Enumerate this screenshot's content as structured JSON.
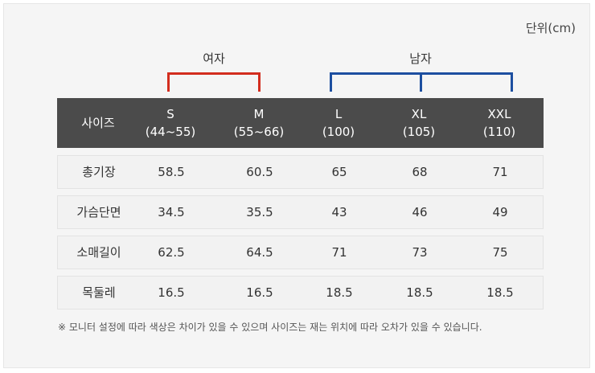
{
  "unit_label": "단위(cm)",
  "groups": {
    "women": "여자",
    "men": "남자"
  },
  "colors": {
    "women_bracket": "#d32d1e",
    "men_bracket": "#1d4fa0",
    "header_bg": "#4b4b4b"
  },
  "header": {
    "label": "사이즈",
    "sizes": [
      {
        "name": "S",
        "range": "(44~55)"
      },
      {
        "name": "M",
        "range": "(55~66)"
      },
      {
        "name": "L",
        "range": "(100)"
      },
      {
        "name": "XL",
        "range": "(105)"
      },
      {
        "name": "XXL",
        "range": "(110)"
      }
    ]
  },
  "rows": [
    {
      "label": "총기장",
      "values": [
        "58.5",
        "60.5",
        "65",
        "68",
        "71"
      ]
    },
    {
      "label": "가슴단면",
      "values": [
        "34.5",
        "35.5",
        "43",
        "46",
        "49"
      ]
    },
    {
      "label": "소매길이",
      "values": [
        "62.5",
        "64.5",
        "71",
        "73",
        "75"
      ]
    },
    {
      "label": "목둘레",
      "values": [
        "16.5",
        "16.5",
        "18.5",
        "18.5",
        "18.5"
      ]
    }
  ],
  "note": "※ 모니터 설정에 따라 색상은 차이가 있을 수 있으며 사이즈는 재는 위치에 따라 오차가 있을 수 있습니다."
}
